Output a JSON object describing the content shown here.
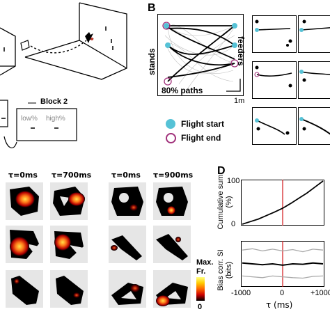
{
  "panel_letters": {
    "b": "B",
    "d": "D"
  },
  "panel_a": {
    "block2_label": "Block 2",
    "low_label": "low%",
    "high_label": "high%"
  },
  "panel_b": {
    "stands_label": "stands",
    "feeders_label": "feeders",
    "paths_label": "80% paths",
    "scale_label": "1m",
    "legend": [
      {
        "label": "Flight start",
        "color": "#56c2d6"
      },
      {
        "label": "Flight end",
        "color": "#a0307a"
      }
    ]
  },
  "panel_c": {
    "col_headers": [
      "τ=0ms",
      "τ=700ms",
      "τ=0ms",
      "τ=900ms"
    ],
    "colorbar": {
      "max_label": "Max.",
      "unit_label": "Fr.",
      "min_label": "0"
    }
  },
  "chart_data": [
    {
      "type": "line",
      "ylabel": "Cumulative sum (%)",
      "yticks": [
        "100",
        "0"
      ],
      "ylim": [
        0,
        100
      ],
      "xlim": [
        -1000,
        1000
      ],
      "marker_x": 0,
      "series": [
        {
          "x": [
            -1000,
            -800,
            -600,
            -400,
            -200,
            0,
            200,
            400,
            600,
            800,
            1000
          ],
          "values": [
            0,
            6,
            12,
            20,
            28,
            37,
            48,
            60,
            72,
            86,
            100
          ]
        }
      ]
    },
    {
      "type": "line",
      "ylabel": "Bias corr. SI (bits)",
      "xlabel": "τ (ms)",
      "xticks": [
        "-1000",
        "0",
        "+1000"
      ],
      "xlim": [
        -1000,
        1000
      ],
      "ylim": [
        0,
        1
      ],
      "marker_x": 0,
      "series": [
        {
          "x": [
            -1000,
            -750,
            -500,
            -250,
            0,
            250,
            500,
            750,
            1000
          ],
          "values": [
            0.82,
            0.85,
            0.8,
            0.84,
            0.8,
            0.83,
            0.78,
            0.84,
            0.82
          ]
        },
        {
          "x": [
            -1000,
            -750,
            -500,
            -250,
            0,
            250,
            500,
            750,
            1000
          ],
          "values": [
            0.52,
            0.5,
            0.48,
            0.5,
            0.47,
            0.5,
            0.49,
            0.52,
            0.5
          ]
        },
        {
          "x": [
            -1000,
            -750,
            -500,
            -250,
            0,
            250,
            500,
            750,
            1000
          ],
          "values": [
            0.22,
            0.2,
            0.18,
            0.22,
            0.2,
            0.18,
            0.17,
            0.21,
            0.22
          ]
        }
      ]
    }
  ]
}
